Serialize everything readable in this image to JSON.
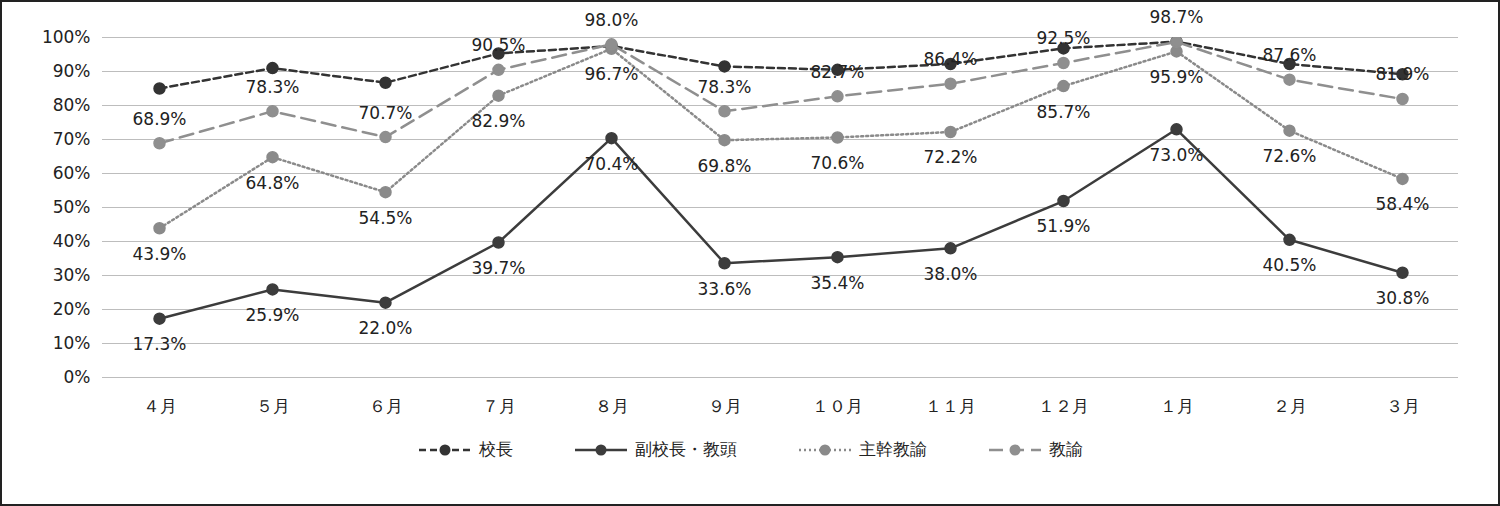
{
  "chart_data": {
    "type": "line",
    "categories": [
      "４月",
      "５月",
      "６月",
      "７月",
      "８月",
      "９月",
      "１０月",
      "１１月",
      "１２月",
      "１月",
      "２月",
      "３月"
    ],
    "ylim": [
      0,
      100
    ],
    "yticks": [
      {
        "value": 0,
        "label": "0%"
      },
      {
        "value": 10,
        "label": "10%"
      },
      {
        "value": 20,
        "label": "20%"
      },
      {
        "value": 30,
        "label": "30%"
      },
      {
        "value": 40,
        "label": "40%"
      },
      {
        "value": 50,
        "label": "50%"
      },
      {
        "value": 60,
        "label": "60%"
      },
      {
        "value": 70,
        "label": "70%"
      },
      {
        "value": 80,
        "label": "80%"
      },
      {
        "value": 90,
        "label": "90%"
      },
      {
        "value": 100,
        "label": "100%"
      }
    ],
    "grid": true,
    "legend": "bottom",
    "series": [
      {
        "name": "校長",
        "color": "#333333",
        "line_style": "dashed",
        "marker": "circle",
        "data_labels": false,
        "values": [
          85.0,
          91.0,
          86.7,
          95.3,
          97.5,
          91.5,
          90.5,
          92.2,
          96.8,
          98.8,
          92.2,
          89.2
        ]
      },
      {
        "name": "副校長・教頭",
        "color": "#3c3c3c",
        "line_style": "solid",
        "marker": "circle",
        "data_labels": true,
        "values": [
          17.3,
          25.9,
          22.0,
          39.7,
          70.4,
          33.6,
          35.4,
          38.0,
          51.9,
          73.0,
          40.5,
          30.8
        ],
        "value_labels": [
          "17.3%",
          "25.9%",
          "22.0%",
          "39.7%",
          "70.4%",
          "33.6%",
          "35.4%",
          "38.0%",
          "51.9%",
          "73.0%",
          "40.5%",
          "30.8%"
        ]
      },
      {
        "name": "主幹教諭",
        "color": "#8a8a8a",
        "line_style": "dotted",
        "marker": "circle",
        "data_labels": true,
        "values": [
          43.9,
          64.8,
          54.5,
          82.9,
          96.7,
          69.8,
          70.6,
          72.2,
          85.7,
          95.9,
          72.6,
          58.4
        ],
        "value_labels": [
          "43.9%",
          "64.8%",
          "54.5%",
          "82.9%",
          "96.7%",
          "69.8%",
          "70.6%",
          "72.2%",
          "85.7%",
          "95.9%",
          "72.6%",
          "58.4%"
        ]
      },
      {
        "name": "教諭",
        "color": "#8f8f8f",
        "line_style": "longdash",
        "marker": "circle",
        "data_labels": true,
        "values": [
          68.9,
          78.3,
          70.7,
          90.5,
          98.0,
          78.3,
          82.7,
          86.4,
          92.5,
          98.7,
          87.6,
          81.9
        ],
        "value_labels": [
          "68.9%",
          "78.3%",
          "70.7%",
          "90.5%",
          "98.0%",
          "78.3%",
          "82.7%",
          "86.4%",
          "92.5%",
          "98.7%",
          "87.6%",
          "81.9%"
        ]
      }
    ]
  }
}
